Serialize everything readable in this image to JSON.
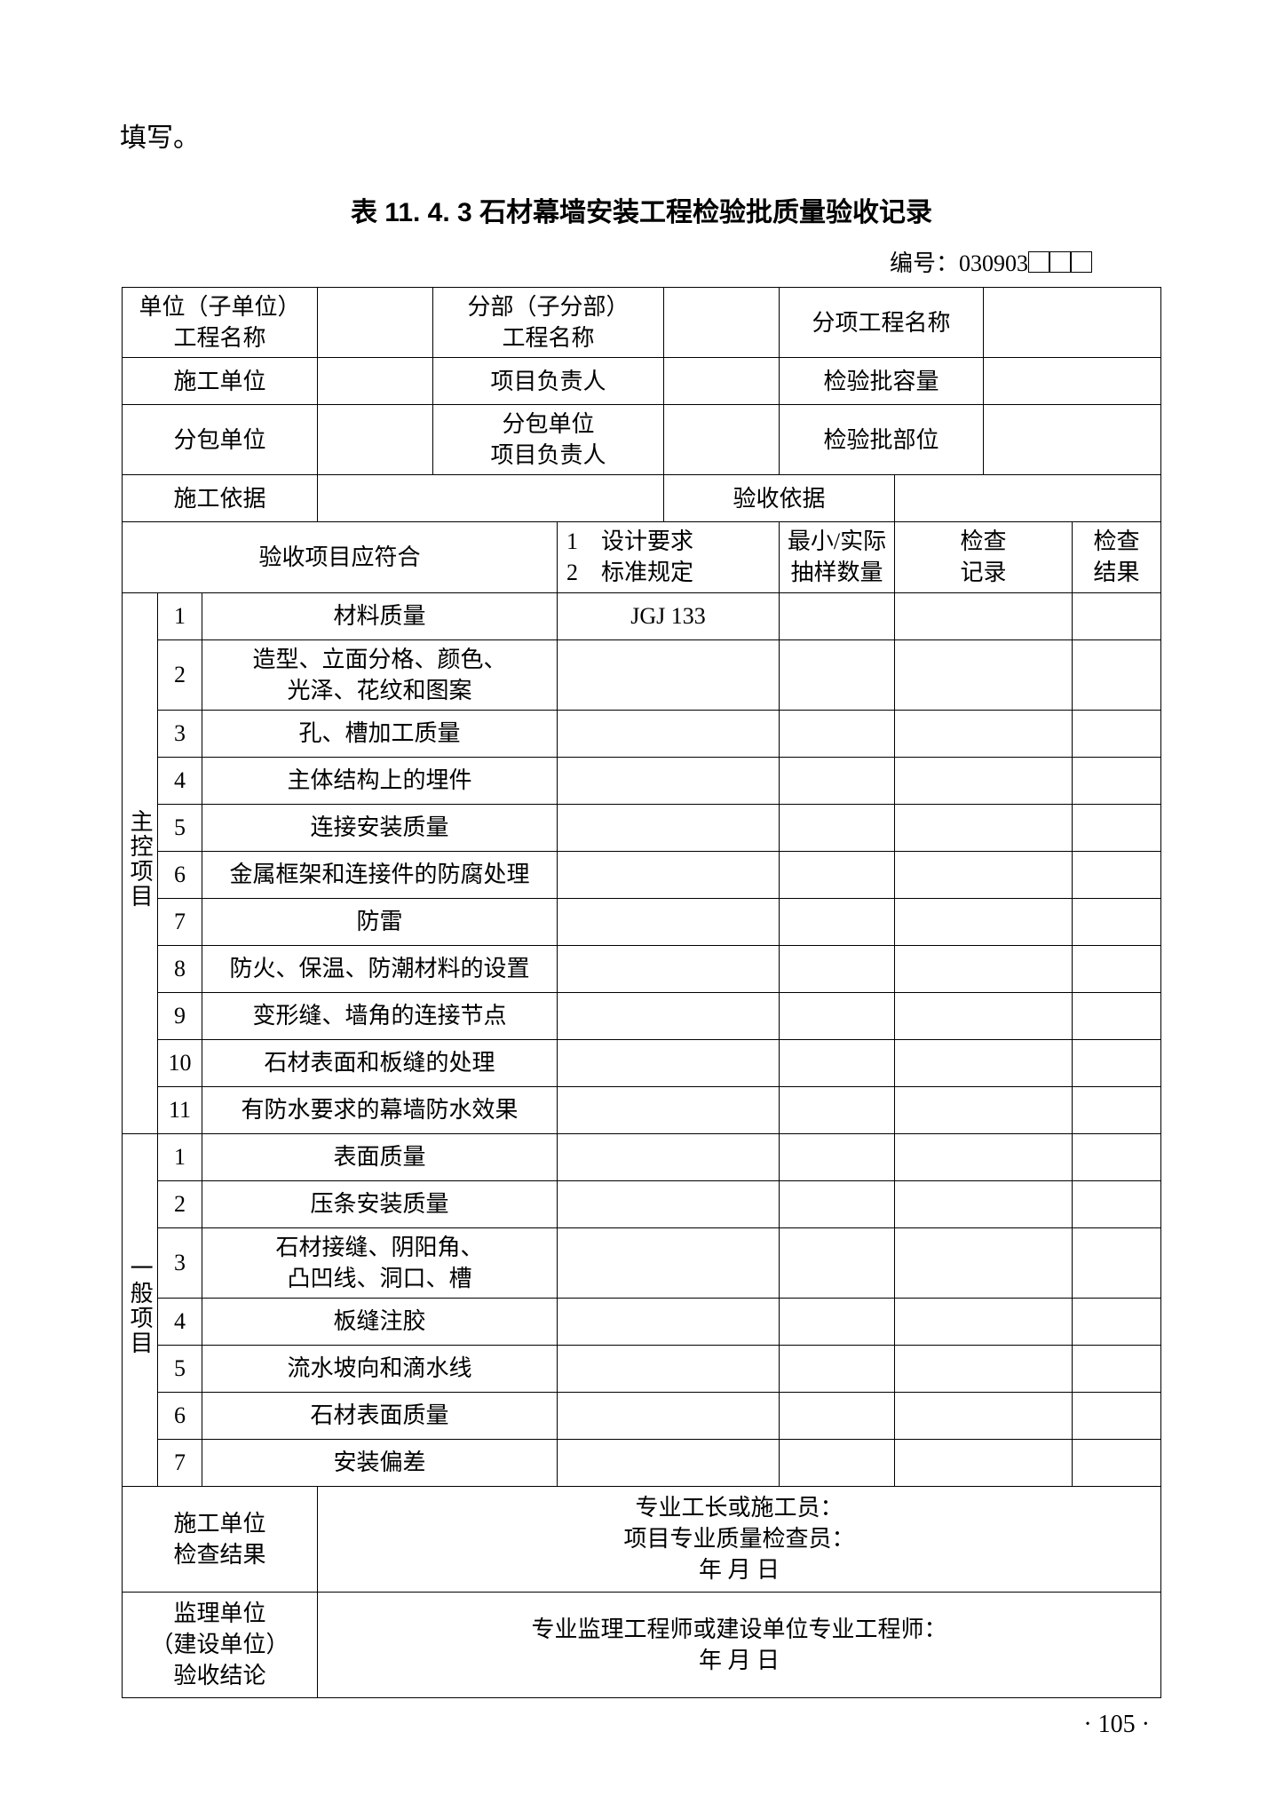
{
  "top_text": "填写。",
  "table_title": "表 11. 4. 3    石材幕墙安装工程检验批质量验收记录",
  "code_prefix": "编号：030903",
  "header": {
    "r1c1": "单位（子单位）\n工程名称",
    "r1c3": "分部（子分部）\n工程名称",
    "r1c5": "分项工程名称",
    "r2c1": "施工单位",
    "r2c3": "项目负责人",
    "r2c5": "检验批容量",
    "r3c1": "分包单位",
    "r3c3": "分包单位\n项目负责人",
    "r3c5": "检验批部位",
    "r4c1": "施工依据",
    "r4c3": "验收依据",
    "r5c1": "验收项目应符合",
    "r5c2": "1    设计要求\n2    标准规定",
    "r5c3": "最小/实际\n抽样数量",
    "r5c4": "检查\n记录",
    "r5c5": "检查\n结果"
  },
  "master_label": "主控项目",
  "master_rows": [
    {
      "n": "1",
      "item": "材料质量",
      "std": "JGJ 133"
    },
    {
      "n": "2",
      "item": "造型、立面分格、颜色、\n光泽、花纹和图案",
      "std": ""
    },
    {
      "n": "3",
      "item": "孔、槽加工质量",
      "std": ""
    },
    {
      "n": "4",
      "item": "主体结构上的埋件",
      "std": ""
    },
    {
      "n": "5",
      "item": "连接安装质量",
      "std": ""
    },
    {
      "n": "6",
      "item": "金属框架和连接件的防腐处理",
      "std": ""
    },
    {
      "n": "7",
      "item": "防雷",
      "std": ""
    },
    {
      "n": "8",
      "item": "防火、保温、防潮材料的设置",
      "std": ""
    },
    {
      "n": "9",
      "item": "变形缝、墙角的连接节点",
      "std": ""
    },
    {
      "n": "10",
      "item": "石材表面和板缝的处理",
      "std": ""
    },
    {
      "n": "11",
      "item": "有防水要求的幕墙防水效果",
      "std": ""
    }
  ],
  "general_label": "一般项目",
  "general_rows": [
    {
      "n": "1",
      "item": "表面质量",
      "std": ""
    },
    {
      "n": "2",
      "item": "压条安装质量",
      "std": ""
    },
    {
      "n": "3",
      "item": "石材接缝、阴阳角、\n凸凹线、洞口、槽",
      "std": ""
    },
    {
      "n": "4",
      "item": "板缝注胶",
      "std": ""
    },
    {
      "n": "5",
      "item": "流水坡向和滴水线",
      "std": ""
    },
    {
      "n": "6",
      "item": "石材表面质量",
      "std": ""
    },
    {
      "n": "7",
      "item": "安装偏差",
      "std": ""
    }
  ],
  "footer": {
    "f1_label": "施工单位\n检查结果",
    "f1_line1": "专业工长或施工员：",
    "f1_line2": "项目专业质量检查员：",
    "f1_date": "年        月        日",
    "f2_label": "监理单位\n（建设单位）\n验收结论",
    "f2_line1": "专业监理工程师或建设单位专业工程师：",
    "f2_date": "年        月        日"
  },
  "page_number": "· 105 ·"
}
